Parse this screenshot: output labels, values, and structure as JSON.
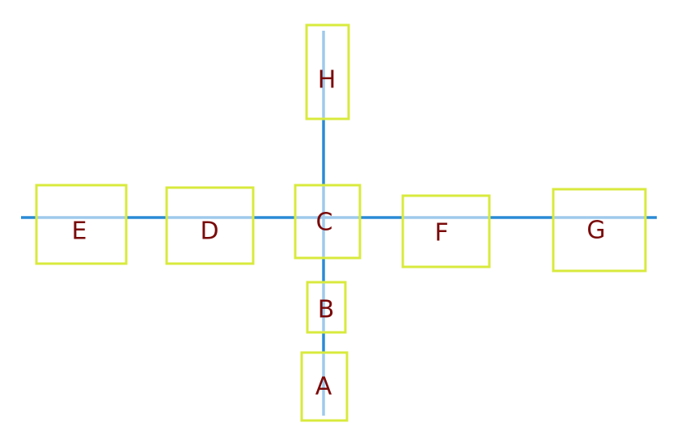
{
  "diagram": {
    "colors": {
      "line": "#2b8bd6",
      "box_border": "#d8ea3c",
      "label": "#7a0a0a",
      "background": "#ffffff"
    },
    "nodes": {
      "A": {
        "label": "A"
      },
      "B": {
        "label": "B"
      },
      "C": {
        "label": "C"
      },
      "D": {
        "label": "D"
      },
      "E": {
        "label": "E"
      },
      "F": {
        "label": "F"
      },
      "G": {
        "label": "G"
      },
      "H": {
        "label": "H"
      }
    },
    "connections": [
      [
        "E",
        "D"
      ],
      [
        "D",
        "C"
      ],
      [
        "C",
        "F"
      ],
      [
        "F",
        "G"
      ],
      [
        "C",
        "H"
      ],
      [
        "C",
        "B"
      ],
      [
        "B",
        "A"
      ]
    ]
  }
}
